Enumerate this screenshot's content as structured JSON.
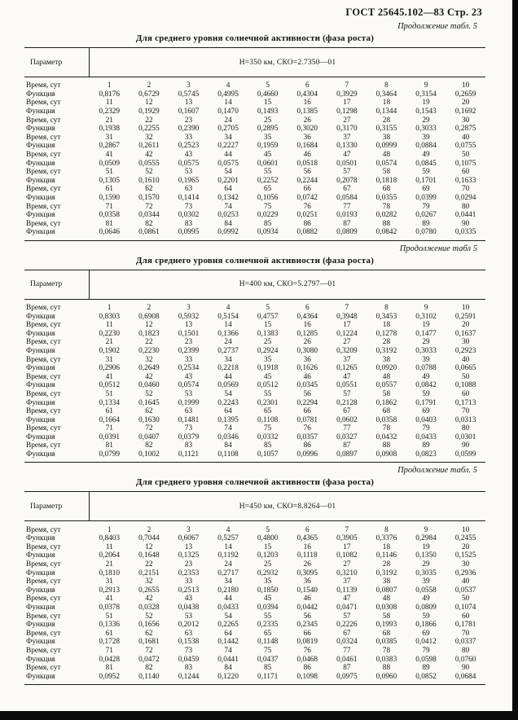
{
  "page": {
    "header": "ГОСТ 25645.102—83 Стр. 23"
  },
  "tables": [
    {
      "continuation": "Продолжение табл. 5",
      "title": "Для среднего уровня солнечной активности (фаза роста)",
      "param_label": "Параметр",
      "condition": "Н=350 км, СКО=2.7350—01",
      "rows": [
        {
          "label": "Время, сут",
          "values": [
            "1",
            "2",
            "3",
            "4",
            "5",
            "6",
            "7",
            "8",
            "9",
            "10"
          ]
        },
        {
          "label": "Функция",
          "values": [
            "0,8176",
            "0,6729",
            "0,5745",
            "0,4995",
            "0,4660",
            "0,4304",
            "0,3929",
            "0,3464",
            "0,3154",
            "0,2659"
          ]
        },
        {
          "label": "Время, сут",
          "values": [
            "11",
            "12",
            "13",
            "14",
            "15",
            "16",
            "17",
            "18",
            "19",
            "20"
          ]
        },
        {
          "label": "Функция",
          "values": [
            "0,2329",
            "0,1929",
            "0,1607",
            "0,1470",
            "0,1493",
            "0,1385",
            "0,1298",
            "0,1344",
            "0,1543",
            "0,1692"
          ]
        },
        {
          "label": "Время, сут",
          "values": [
            "21",
            "22",
            "23",
            "24",
            "25",
            "26",
            "27",
            "28",
            "29",
            "30"
          ]
        },
        {
          "label": "Функция",
          "values": [
            "0,1938",
            "0,2255",
            "0,2390",
            "0,2705",
            "0,2895",
            "0,3020",
            "0,3170",
            "0,3155",
            "0,3033",
            "0,2875"
          ]
        },
        {
          "label": "Время, сут",
          "values": [
            "31",
            "32",
            "33",
            "34",
            "35",
            "36",
            "37",
            "38",
            "39",
            "40"
          ]
        },
        {
          "label": "Функция",
          "values": [
            "0,2867",
            "0,2611",
            "0,2523",
            "0,2227",
            "0,1959",
            "0,1684",
            "0,1330",
            "0,0999",
            "0,0884",
            "0,0755"
          ]
        },
        {
          "label": "Время, сут",
          "values": [
            "41",
            "42",
            "43",
            "44",
            "45",
            "46",
            "47",
            "48",
            "49",
            "50"
          ]
        },
        {
          "label": "Функция",
          "values": [
            "0,0509",
            "0,0555",
            "0,0575",
            "0,0575",
            "0,0601",
            "0,0518",
            "0,0501",
            "0,0574",
            "0,0845",
            "0,1075"
          ]
        },
        {
          "label": "Время, сут",
          "values": [
            "51",
            "52",
            "53",
            "54",
            "55",
            "56",
            "57",
            "58",
            "59",
            "60"
          ]
        },
        {
          "label": "Функция",
          "values": [
            "0,1305",
            "0,1610",
            "0,1965",
            "0,2201",
            "0,2252",
            "0,2244",
            "0,2078",
            "0,1818",
            "0,1701",
            "0,1633"
          ]
        },
        {
          "label": "Время, сут",
          "values": [
            "61",
            "62",
            "63",
            "64",
            "65",
            "66",
            "67",
            "68",
            "69",
            "70"
          ]
        },
        {
          "label": "Функция",
          "values": [
            "0,1590",
            "0,1570",
            "0,1414",
            "0,1342",
            "0,1056",
            "0,0742",
            "0,0584",
            "0,0355",
            "0,0399",
            "0,0294"
          ]
        },
        {
          "label": "Время, сут",
          "values": [
            "71",
            "72",
            "73",
            "74",
            "75",
            "76",
            "77",
            "78",
            "79",
            "80"
          ]
        },
        {
          "label": "Функция",
          "values": [
            "0,0358",
            "0,0344",
            "0,0302",
            "0,0253",
            "0,0229",
            "0,0251",
            "0,0193",
            "0,0282",
            "0,0267",
            "0,0441"
          ]
        },
        {
          "label": "Время, сут",
          "values": [
            "81",
            "82",
            "83",
            "84",
            "85",
            "86",
            "87",
            "88",
            "89",
            "90"
          ]
        },
        {
          "label": "Функция",
          "values": [
            "0,0646",
            "0,0861",
            "0,0995",
            "0,0992",
            "0,0934",
            "0,0882",
            "0,0809",
            "0,0842",
            "0,0780",
            "0,0335"
          ]
        }
      ]
    },
    {
      "continuation": "Продолжение табл 5",
      "title": "Для среднего уровня солнечной активности (фаза роста)",
      "param_label": "Параметр",
      "condition": "Н=400 км, СКО=5.2797—01",
      "rows": [
        {
          "label": "Время, сут",
          "values": [
            "1",
            "2",
            "3",
            "4",
            "5",
            "6",
            "7",
            "8",
            "9",
            "10"
          ]
        },
        {
          "label": "Функция",
          "values": [
            "0,8303",
            "0,6908",
            "0,5932",
            "0,5154",
            "0,4757",
            "0,4364",
            "0,3948",
            "0,3453",
            "0,3102",
            "0,2591"
          ]
        },
        {
          "label": "Время, сут",
          "values": [
            "11",
            "12",
            "13",
            "14",
            "15",
            "16",
            "17",
            "18",
            "19",
            "20"
          ]
        },
        {
          "label": "Функция",
          "values": [
            "0,2230",
            "0,1823",
            "0,1501",
            "0,1366",
            "0,1383",
            "0,1285",
            "0,1224",
            "0,1278",
            "0,1477",
            "0,1637"
          ]
        },
        {
          "label": "Время, сут",
          "values": [
            "21",
            "22",
            "23",
            "24",
            "25",
            "26",
            "27",
            "28",
            "29",
            "30"
          ]
        },
        {
          "label": "Функция",
          "values": [
            "0,1902",
            "0,2230",
            "0,2399",
            "0,2737",
            "0,2924",
            "0,3080",
            "0,3209",
            "0,3192",
            "0,3033",
            "0,2923"
          ]
        },
        {
          "label": "Время, сут",
          "values": [
            "31",
            "32",
            "33",
            "34",
            "35",
            "36",
            "37",
            "38",
            "39",
            "40"
          ]
        },
        {
          "label": "Функция",
          "values": [
            "0,2906",
            "0,2649",
            "0,2534",
            "0,2218",
            "0,1918",
            "0,1626",
            "0,1265",
            "0,0920",
            "0,0788",
            "0,0665"
          ]
        },
        {
          "label": "Время, сут",
          "values": [
            "41",
            "42",
            "43",
            "44",
            "45",
            "46",
            "47",
            "48",
            "49",
            "50"
          ]
        },
        {
          "label": "Функция",
          "values": [
            "0,0512",
            "0,0460",
            "0,0574",
            "0,0569",
            "0,0512",
            "0,0345",
            "0,0551",
            "0,0557",
            "0,0842",
            "0,1088"
          ]
        },
        {
          "label": "Время, сут",
          "values": [
            "51",
            "52",
            "53",
            "54",
            "55",
            "56",
            "57",
            "58",
            "59",
            "60"
          ]
        },
        {
          "label": "Функция",
          "values": [
            "0,1334",
            "0,1645",
            "0,1999",
            "0,2243",
            "0,2301",
            "0,2294",
            "0,2128",
            "0,1862",
            "0,1791",
            "0,1713"
          ]
        },
        {
          "label": "Время, сут",
          "values": [
            "61",
            "62",
            "63",
            "64",
            "65",
            "66",
            "67",
            "68",
            "69",
            "70"
          ]
        },
        {
          "label": "Функция",
          "values": [
            "0,1664",
            "0,1630",
            "0,1481",
            "0,1395",
            "0,1108",
            "0,0781",
            "0,0602",
            "0,0358",
            "0,0403",
            "0,0313"
          ]
        },
        {
          "label": "Время, сут",
          "values": [
            "71",
            "72",
            "73",
            "74",
            "75",
            "76",
            "77",
            "78",
            "79",
            "80"
          ]
        },
        {
          "label": "Функция",
          "values": [
            "0,0391",
            "0,0407",
            "0,0379",
            "0,0346",
            "0,0332",
            "0,0357",
            "0,0327",
            "0,0432",
            "0,0433",
            "0,0301"
          ]
        },
        {
          "label": "Время, сут",
          "values": [
            "81",
            "82",
            "83",
            "84",
            "85",
            "86",
            "87",
            "88",
            "89",
            "90"
          ]
        },
        {
          "label": "Функция",
          "values": [
            "0,0799",
            "0,1002",
            "0,1121",
            "0,1108",
            "0,1057",
            "0,0996",
            "0,0897",
            "0,0908",
            "0,0823",
            "0,0599"
          ]
        }
      ]
    },
    {
      "continuation": "Продолжение табл. 5",
      "title": "Для среднего уровня солнечной активности (фаза роста)",
      "param_label": "Параметр",
      "condition": "Н=450 км, СКО=8.8264—01",
      "rows": [
        {
          "label": "Время, сут",
          "values": [
            "1",
            "2",
            "3",
            "4",
            "5",
            "6",
            "7",
            "8",
            "9",
            "10"
          ]
        },
        {
          "label": "Функция",
          "values": [
            "0,8403",
            "0,7044",
            "0,6067",
            "0,5257",
            "0,4800",
            "0,4365",
            "0,3905",
            "0,3376",
            "0,2984",
            "0,2455"
          ]
        },
        {
          "label": "Время, сут",
          "values": [
            "11",
            "12",
            "13",
            "14",
            "15",
            "16",
            "17",
            "18",
            "19",
            "20"
          ]
        },
        {
          "label": "Функция",
          "values": [
            "0,2064",
            "0,1648",
            "0,1325",
            "0,1192",
            "0,1203",
            "0,1118",
            "0,1082",
            "0,1146",
            "0,1350",
            "0,1525"
          ]
        },
        {
          "label": "Время, сут",
          "values": [
            "21",
            "22",
            "23",
            "24",
            "25",
            "26",
            "27",
            "28",
            "29",
            "30"
          ]
        },
        {
          "label": "Функция",
          "values": [
            "0,1810",
            "0,2151",
            "0,2353",
            "0,2717",
            "0,2932",
            "0,3095",
            "0,3210",
            "0,3192",
            "0,3035",
            "0,2936"
          ]
        },
        {
          "label": "Время, сут",
          "values": [
            "31",
            "32",
            "33",
            "34",
            "35",
            "36",
            "37",
            "38",
            "39",
            "40"
          ]
        },
        {
          "label": "Функция",
          "values": [
            "0,2913",
            "0,2655",
            "0,2513",
            "0,2180",
            "0,1850",
            "0,1540",
            "0,1139",
            "0,0807",
            "0,0558",
            "0,0537"
          ]
        },
        {
          "label": "Время, сут",
          "values": [
            "41",
            "42",
            "43",
            "44",
            "45",
            "46",
            "47",
            "48",
            "49",
            "50"
          ]
        },
        {
          "label": "Функция",
          "values": [
            "0,0378",
            "0,0328",
            "0,0438",
            "0,0433",
            "0,0394",
            "0,0442",
            "0,0471",
            "0,0308",
            "0,0809",
            "0,1074"
          ]
        },
        {
          "label": "Время, сут",
          "values": [
            "51",
            "52",
            "53",
            "54",
            "55",
            "56",
            "57",
            "58",
            "59",
            "60"
          ]
        },
        {
          "label": "Функция",
          "values": [
            "0,1336",
            "0,1656",
            "0,2012",
            "0,2265",
            "0,2335",
            "0,2345",
            "0,2226",
            "0,1993",
            "0,1866",
            "0,1781"
          ]
        },
        {
          "label": "Время, сут",
          "values": [
            "61",
            "62",
            "63",
            "64",
            "65",
            "66",
            "67",
            "68",
            "69",
            "70"
          ]
        },
        {
          "label": "Функция",
          "values": [
            "0,1728",
            "0,1681",
            "0,1538",
            "0,1442",
            "0,1148",
            "0,0819",
            "0,0324",
            "0,0385",
            "0,0412",
            "0,0337"
          ]
        },
        {
          "label": "Время, сут",
          "values": [
            "71",
            "72",
            "73",
            "74",
            "75",
            "76",
            "77",
            "78",
            "79",
            "80"
          ]
        },
        {
          "label": "Функция",
          "values": [
            "0,0428",
            "0,0472",
            "0,0459",
            "0,0441",
            "0,0437",
            "0,0468",
            "0,0461",
            "0,0383",
            "0,0598",
            "0,0760"
          ]
        },
        {
          "label": "Время, сут",
          "values": [
            "81",
            "82",
            "83",
            "84",
            "85",
            "86",
            "87",
            "88",
            "89",
            "90"
          ]
        },
        {
          "label": "Функция",
          "values": [
            "0,0952",
            "0,1140",
            "0,1244",
            "0,1220",
            "0,1171",
            "0,1098",
            "0,0975",
            "0,0960",
            "0,0852",
            "0,0684"
          ]
        }
      ]
    }
  ]
}
